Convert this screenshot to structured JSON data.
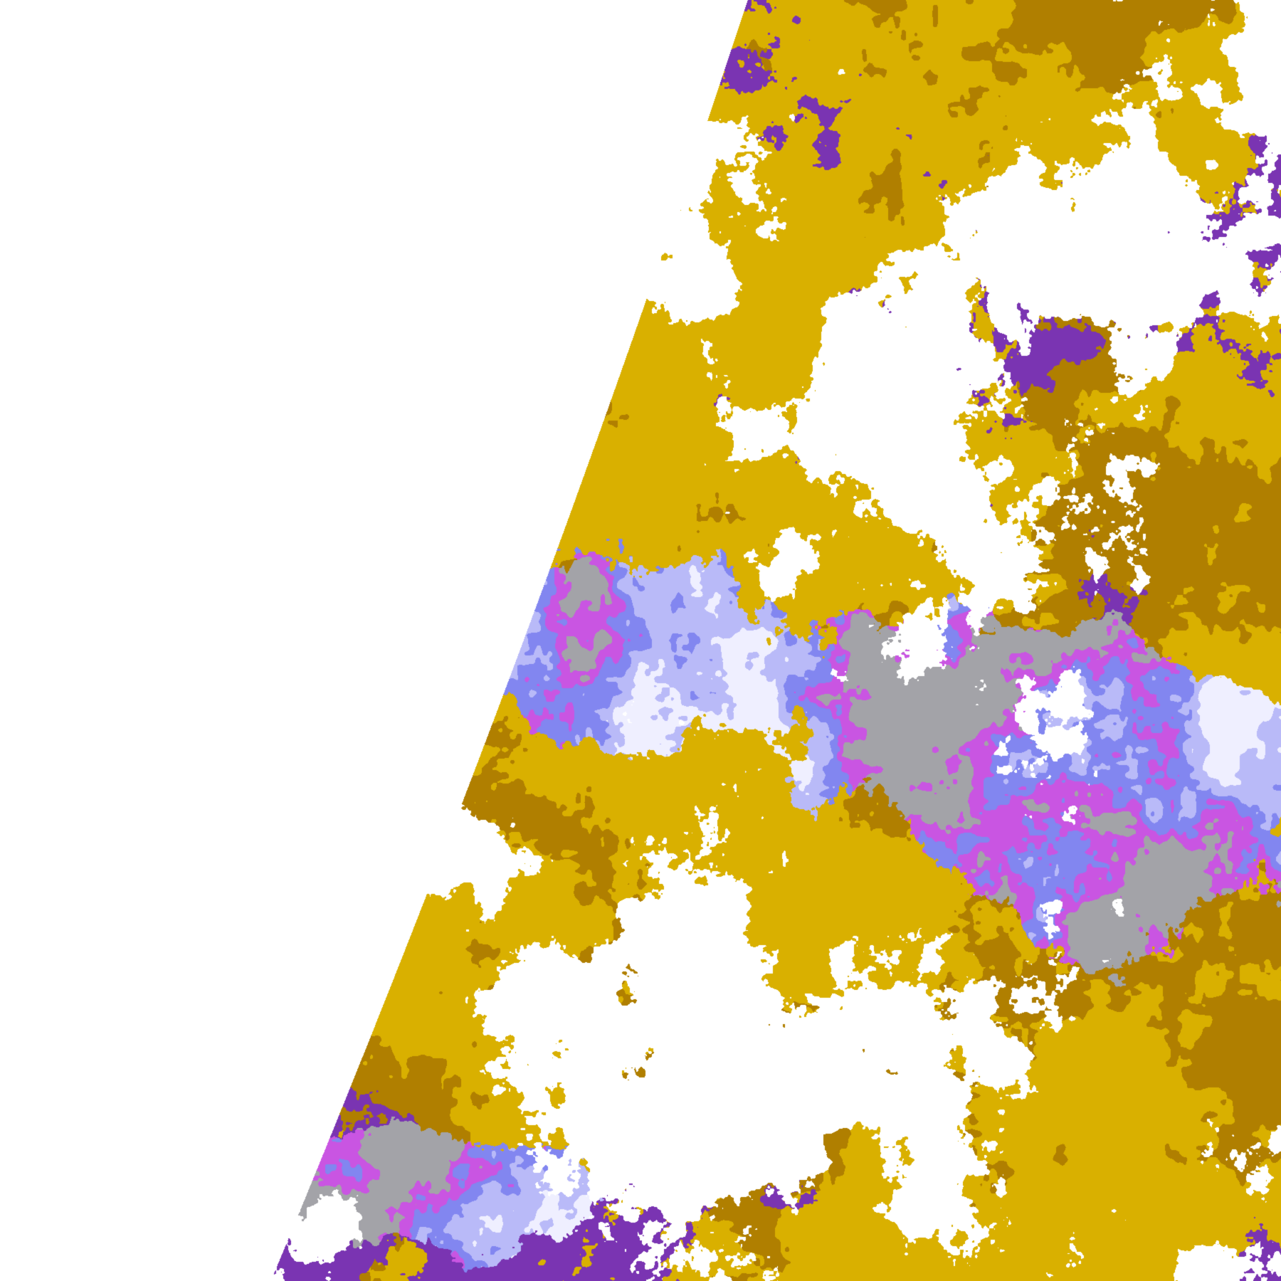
{
  "image": {
    "kind": "satellite cloud classification composite",
    "background_color": "#ffffff",
    "palette": {
      "clear": "#ffffff",
      "low_cloud_gold": "#d9b000",
      "low_cloud_dark_gold": "#b07f00",
      "mid_cloud_purple": "#7a34b2",
      "high_cloud_magenta": "#c955e2",
      "high_cloud_lavender": "#b9baf8",
      "high_cloud_periwinkle": "#8286f0",
      "thin_cloud_gray": "#a3a3a8",
      "deep_cloud_white": "#efefff"
    }
  }
}
